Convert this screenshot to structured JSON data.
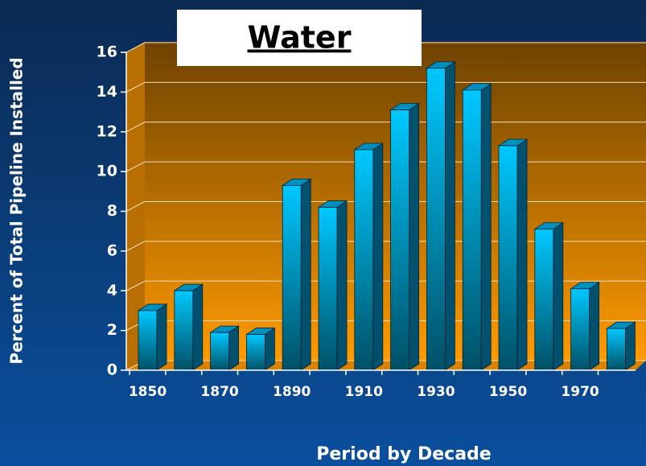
{
  "chart_data": {
    "type": "bar3d",
    "title": "Water",
    "y_label": "Percent of Total Pipeline Installed",
    "x_label": "Period by Decade",
    "categories": [
      "1850",
      null,
      "1870",
      null,
      "1890",
      null,
      "1910",
      null,
      "1930",
      null,
      "1950",
      null,
      "1970",
      null
    ],
    "values": [
      3,
      4,
      1.9,
      1.8,
      9.3,
      8.2,
      11.1,
      13.1,
      15.2,
      14.1,
      11.3,
      7.1,
      4.1,
      2.1
    ],
    "color": "#00c8ff",
    "ylim": [
      0,
      16
    ],
    "yticks": [
      0,
      2,
      4,
      6,
      8,
      10,
      12,
      14,
      16
    ],
    "grid": true
  }
}
